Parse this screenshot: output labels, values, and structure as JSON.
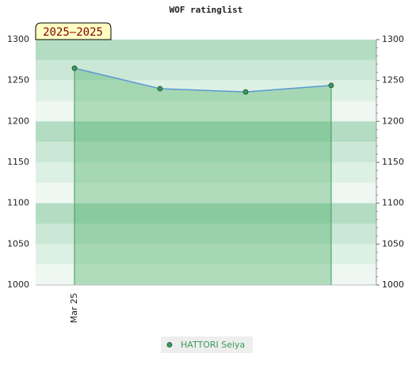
{
  "chart_data": {
    "type": "line",
    "title": "WOF ratinglist",
    "badge": "2025–2025",
    "categories": [
      "Mar 25",
      null,
      null,
      null
    ],
    "series": [
      {
        "name": "HATTORI Seiya",
        "color": "#5b9bd5",
        "marker_color": "#3a9a5c",
        "values": [
          1265,
          1240,
          1236,
          1244
        ]
      }
    ],
    "ylim": [
      1000,
      1300
    ],
    "yticks": [
      1000,
      1050,
      1100,
      1150,
      1200,
      1250,
      1300
    ],
    "y2lim": [
      1000,
      1300
    ],
    "y2ticks": [
      1000,
      1050,
      1100,
      1150,
      1200,
      1250,
      1300
    ],
    "area": true,
    "legend": "bottom"
  }
}
